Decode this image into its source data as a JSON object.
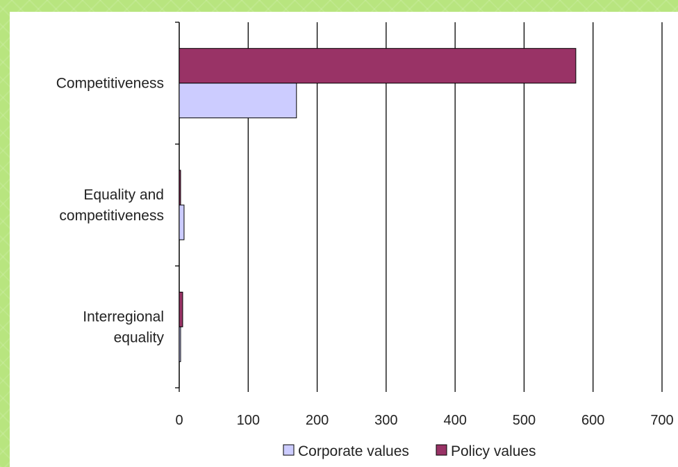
{
  "chart_data": {
    "type": "bar",
    "orientation": "horizontal",
    "categories": [
      "Competitiveness",
      "Equality and competitiveness",
      "Interregional equality"
    ],
    "category_lines": [
      [
        "Competitiveness"
      ],
      [
        "Equality and",
        "competitiveness"
      ],
      [
        "Interregional",
        "equality"
      ]
    ],
    "series": [
      {
        "name": "Policy values",
        "values": [
          575,
          2,
          5
        ],
        "color": "#993366"
      },
      {
        "name": "Corporate values",
        "values": [
          170,
          7,
          2
        ],
        "color": "#ccccff"
      }
    ],
    "xlim": [
      0,
      700
    ],
    "xticks": [
      "0",
      "100",
      "200",
      "300",
      "400",
      "500",
      "600",
      "700"
    ],
    "grid": true,
    "legend_position": "bottom",
    "legend_order": [
      "Corporate values",
      "Policy values"
    ]
  }
}
